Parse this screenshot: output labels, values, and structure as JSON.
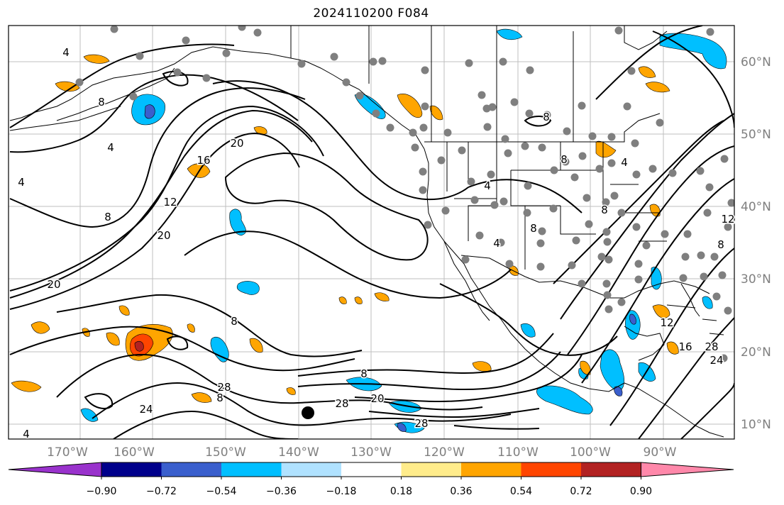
{
  "title": "2024110200 F084",
  "lon_labels": [
    "170°W",
    "160°W",
    "150°W",
    "140°W",
    "130°W",
    "120°W",
    "110°W",
    "100°W",
    "90°W"
  ],
  "lat_labels": [
    "60°N",
    "50°N",
    "40°N",
    "30°N",
    "20°N",
    "10°N"
  ],
  "colorbar": {
    "colors": [
      "#9932cc",
      "#00008b",
      "#3a5fcd",
      "#00bfff",
      "#b0e2ff",
      "#ffffff",
      "#ffec8b",
      "#ffa500",
      "#ff4500",
      "#b22222",
      "#ff88aa"
    ],
    "tick_labels": [
      "−0.90",
      "−0.72",
      "−0.54",
      "−0.36",
      "−0.18",
      "0.18",
      "0.36",
      "0.54",
      "0.72",
      "0.90"
    ]
  },
  "contour_labels": [
    "4",
    "8",
    "4",
    "4",
    "20",
    "16",
    "12",
    "20",
    "8",
    "8",
    "4",
    "20",
    "8",
    "8",
    "24",
    "28",
    "28",
    "20",
    "8",
    "28",
    "8",
    "8",
    "8",
    "4",
    "8",
    "12",
    "12",
    "16",
    "28",
    "24",
    "4",
    "4"
  ],
  "colors": {
    "frame": "#000000",
    "grid": "#bfbfbf",
    "station": "#7f7f7f",
    "contour": "#000000"
  }
}
